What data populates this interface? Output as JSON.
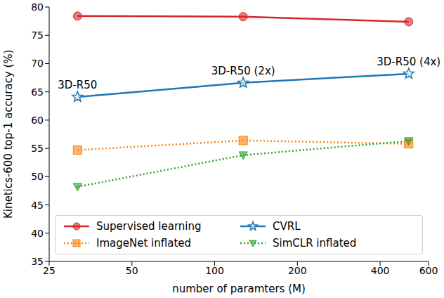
{
  "chart_data": {
    "type": "line",
    "xlabel": "number of paramters (M)",
    "ylabel": "Kinetics-600 top-1 accuracy (%)",
    "log": "x",
    "grid": false,
    "legend": "lower center",
    "xlim": [
      25,
      600
    ],
    "xticks": [
      25,
      50,
      100,
      200,
      400,
      600
    ],
    "ylim": [
      35,
      80
    ],
    "yticks": [
      35,
      40,
      45,
      50,
      55,
      60,
      65,
      70,
      75,
      80
    ],
    "x": [
      31.7,
      127,
      508
    ],
    "series": [
      {
        "name": "Supervised learning",
        "color": "#d62728",
        "marker": "circle",
        "line_style": "solid",
        "values": [
          78.4,
          78.3,
          77.4
        ]
      },
      {
        "name": "CVRL",
        "color": "#1f77b4",
        "marker": "star",
        "line_style": "solid",
        "values": [
          64.1,
          66.6,
          68.2
        ]
      },
      {
        "name": "ImageNet inflated",
        "color": "#ff7f0e",
        "marker": "square",
        "line_style": "dotted",
        "values": [
          54.7,
          56.4,
          55.8
        ]
      },
      {
        "name": "SimCLR inflated",
        "color": "#2ca02c",
        "marker": "triangle_down",
        "line_style": "dotted",
        "values": [
          48.2,
          53.8,
          56.3
        ]
      }
    ],
    "annotations": [
      {
        "text": "3D-R50",
        "x": 31.7,
        "y": 64.1
      },
      {
        "text": "3D-R50 (2x)",
        "x": 127,
        "y": 66.6
      },
      {
        "text": "3D-R50 (4x)",
        "x": 508,
        "y": 68.2
      }
    ]
  }
}
